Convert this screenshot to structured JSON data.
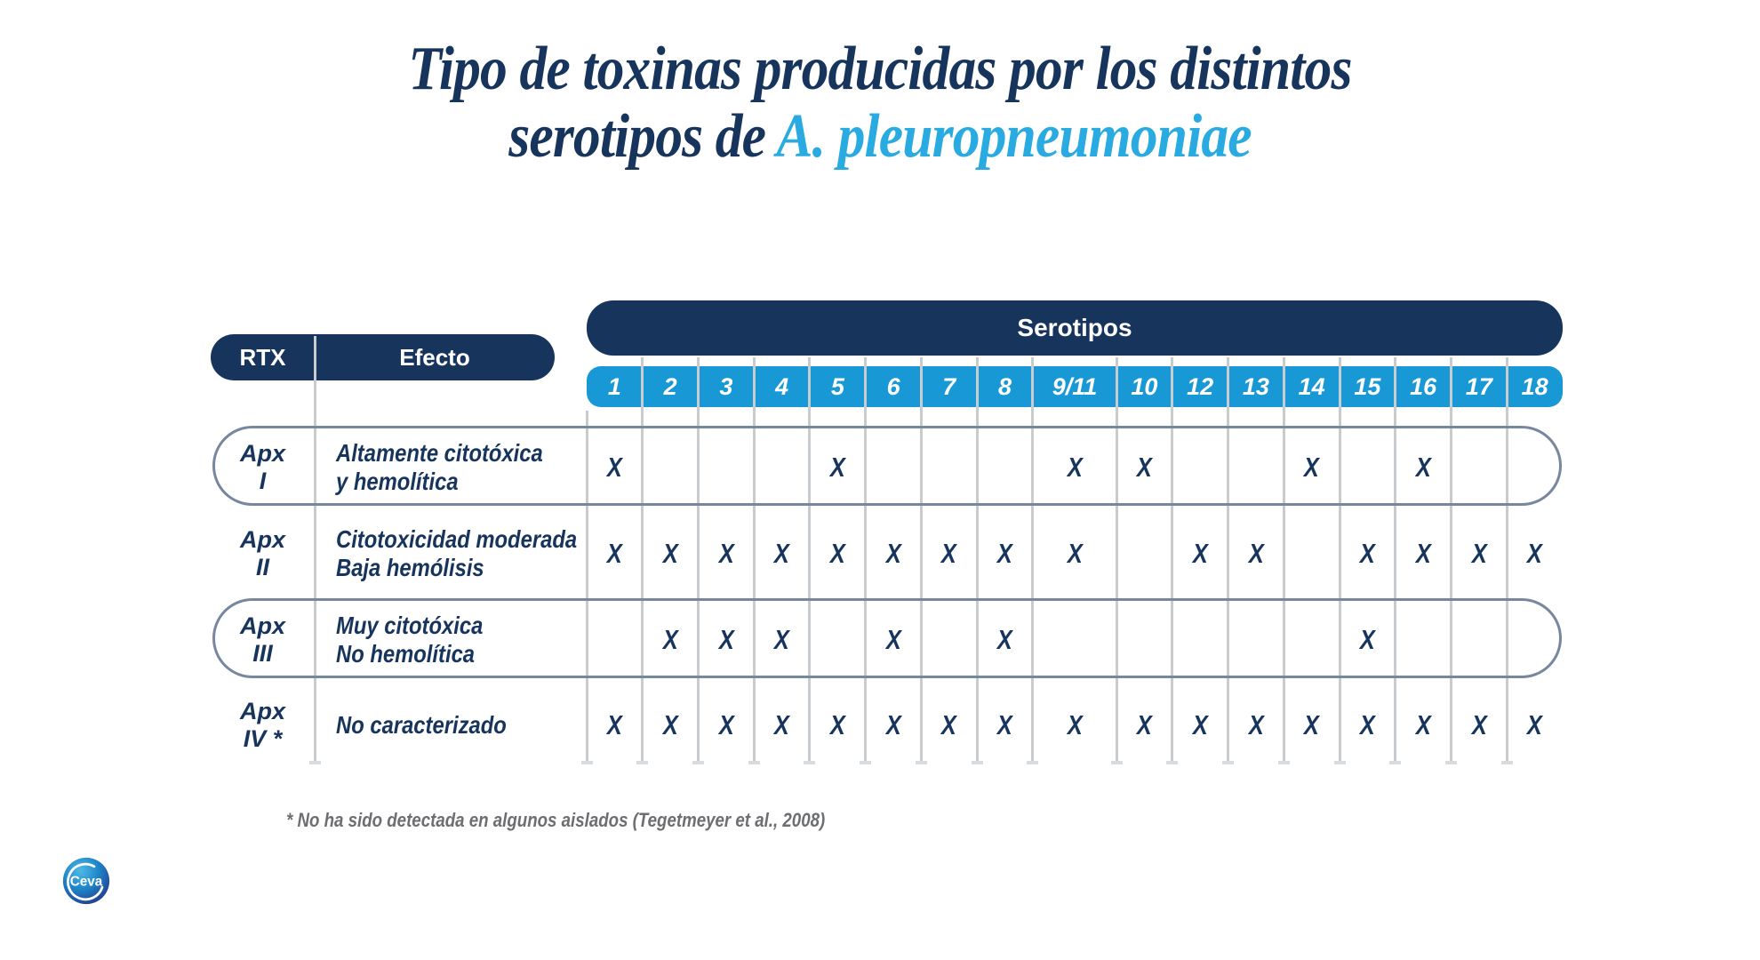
{
  "title": {
    "line1": "Tipo de toxinas producidas por los distintos",
    "line2_prefix": "serotipos de ",
    "line2_accent": "A. pleuropneumoniae"
  },
  "colors": {
    "navy": "#17355C",
    "cell_blue": "#1899D6",
    "accent_blue": "#29ABE2",
    "grid_line_gray": "#C8CCCE",
    "row_outline_slate": "#76879E",
    "footnote_gray": "#6D6E71"
  },
  "table": {
    "rtx_header": "RTX",
    "efecto_header": "Efecto",
    "serotypes_header": "Serotipos",
    "serotypes": [
      "1",
      "2",
      "3",
      "4",
      "5",
      "6",
      "7",
      "8",
      "9/11",
      "10",
      "12",
      "13",
      "14",
      "15",
      "16",
      "17",
      "18"
    ],
    "mark_symbol": "X",
    "rows": [
      {
        "rtx_line1": "Apx",
        "rtx_line2": "I",
        "effect_line1": "Altamente citotóxica",
        "effect_line2": "y hemolítica",
        "outlined": true,
        "marks": [
          1,
          0,
          0,
          0,
          1,
          0,
          0,
          0,
          1,
          1,
          0,
          0,
          1,
          0,
          1,
          0,
          0
        ]
      },
      {
        "rtx_line1": "Apx",
        "rtx_line2": "II",
        "effect_line1": "Citotoxicidad moderada",
        "effect_line2": "Baja hemólisis",
        "outlined": false,
        "marks": [
          1,
          1,
          1,
          1,
          1,
          1,
          1,
          1,
          1,
          0,
          1,
          1,
          0,
          1,
          1,
          1,
          1
        ]
      },
      {
        "rtx_line1": "Apx",
        "rtx_line2": "III",
        "effect_line1": "Muy citotóxica",
        "effect_line2": "No hemolítica",
        "outlined": true,
        "marks": [
          0,
          1,
          1,
          1,
          0,
          1,
          0,
          1,
          0,
          0,
          0,
          0,
          0,
          1,
          0,
          0,
          0
        ]
      },
      {
        "rtx_line1": "Apx",
        "rtx_line2": "IV *",
        "effect_line1": "No caracterizado",
        "effect_line2": "",
        "outlined": false,
        "marks": [
          1,
          1,
          1,
          1,
          1,
          1,
          1,
          1,
          1,
          1,
          1,
          1,
          1,
          1,
          1,
          1,
          1
        ]
      }
    ]
  },
  "footnote": "* No ha sido detectada en algunos aislados (Tegetmeyer et al., 2008)",
  "logo": {
    "text": "Ceva"
  },
  "chart_data": {
    "type": "table",
    "title": "Tipo de toxinas producidas por los distintos serotipos de A. pleuropneumoniae",
    "columns": [
      "RTX",
      "Efecto",
      "1",
      "2",
      "3",
      "4",
      "5",
      "6",
      "7",
      "8",
      "9/11",
      "10",
      "12",
      "13",
      "14",
      "15",
      "16",
      "17",
      "18"
    ],
    "rows": [
      {
        "rtx": "Apx I",
        "efecto": "Altamente citotóxica y hemolítica",
        "serotipos_con_toxina": [
          "1",
          "5",
          "9/11",
          "10",
          "14",
          "16"
        ]
      },
      {
        "rtx": "Apx II",
        "efecto": "Citotoxicidad moderada / Baja hemólisis",
        "serotipos_con_toxina": [
          "1",
          "2",
          "3",
          "4",
          "5",
          "6",
          "7",
          "8",
          "9/11",
          "12",
          "13",
          "15",
          "16",
          "17",
          "18"
        ]
      },
      {
        "rtx": "Apx III",
        "efecto": "Muy citotóxica / No hemolítica",
        "serotipos_con_toxina": [
          "2",
          "3",
          "4",
          "6",
          "8",
          "15"
        ]
      },
      {
        "rtx": "Apx IV *",
        "efecto": "No caracterizado",
        "serotipos_con_toxina": [
          "1",
          "2",
          "3",
          "4",
          "5",
          "6",
          "7",
          "8",
          "9/11",
          "10",
          "12",
          "13",
          "14",
          "15",
          "16",
          "17",
          "18"
        ]
      }
    ],
    "footnote": "* No ha sido detectada en algunos aislados (Tegetmeyer et al., 2008)"
  }
}
